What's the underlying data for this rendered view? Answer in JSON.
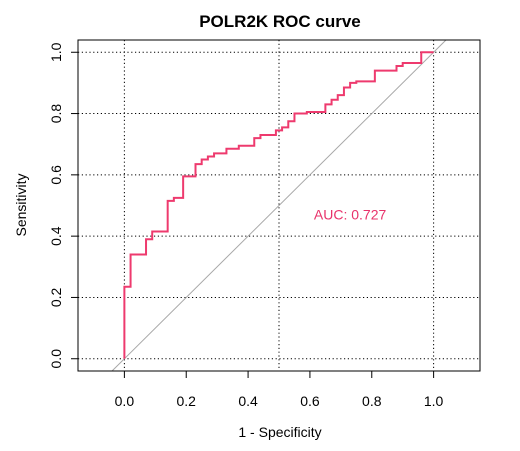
{
  "chart_data": {
    "type": "line",
    "title": "POLR2K ROC curve",
    "xlabel": "1 - Specificity",
    "ylabel": "Sensitivity",
    "xlim": [
      -0.15,
      1.15
    ],
    "ylim": [
      -0.04,
      1.04
    ],
    "xticks": [
      0.0,
      0.2,
      0.4,
      0.6,
      0.8,
      1.0
    ],
    "yticks": [
      0.0,
      0.2,
      0.4,
      0.6,
      0.8,
      1.0
    ],
    "xtick_labels": [
      "0.0",
      "0.2",
      "0.4",
      "0.6",
      "0.8",
      "1.0"
    ],
    "ytick_labels": [
      "0.0",
      "0.2",
      "0.4",
      "0.6",
      "0.8",
      "1.0"
    ],
    "grid": true,
    "grid_x": [
      0.0,
      0.5,
      1.0
    ],
    "grid_y": [
      0.0,
      0.2,
      0.4,
      0.6,
      0.8,
      1.0
    ],
    "diagonal": true,
    "annotation": {
      "text": "AUC: 0.727",
      "x": 0.73,
      "y": 0.47
    },
    "colors": {
      "curve": "#ee3a6e",
      "diagonal": "#a8a8a8",
      "annotation": "#e8336b"
    },
    "series": [
      {
        "x": [
          0.0,
          0.0,
          0.02,
          0.02,
          0.07,
          0.07,
          0.09,
          0.09,
          0.14,
          0.14,
          0.16,
          0.16,
          0.19,
          0.19,
          0.23,
          0.23,
          0.25,
          0.25,
          0.27,
          0.27,
          0.29,
          0.29,
          0.33,
          0.33,
          0.37,
          0.37,
          0.42,
          0.42,
          0.44,
          0.44,
          0.49,
          0.49,
          0.51,
          0.51,
          0.53,
          0.53,
          0.55,
          0.55,
          0.59,
          0.59,
          0.65,
          0.65,
          0.67,
          0.67,
          0.69,
          0.69,
          0.71,
          0.71,
          0.73,
          0.73,
          0.75,
          0.75,
          0.81,
          0.81,
          0.88,
          0.88,
          0.9,
          0.9,
          0.96,
          0.96,
          1.0
        ],
        "y": [
          0.0,
          0.235,
          0.235,
          0.34,
          0.34,
          0.39,
          0.39,
          0.415,
          0.415,
          0.515,
          0.515,
          0.525,
          0.525,
          0.595,
          0.595,
          0.635,
          0.635,
          0.65,
          0.65,
          0.66,
          0.66,
          0.67,
          0.67,
          0.685,
          0.685,
          0.695,
          0.695,
          0.72,
          0.72,
          0.73,
          0.73,
          0.745,
          0.745,
          0.755,
          0.755,
          0.775,
          0.775,
          0.8,
          0.8,
          0.805,
          0.805,
          0.83,
          0.83,
          0.845,
          0.845,
          0.86,
          0.86,
          0.885,
          0.885,
          0.9,
          0.9,
          0.905,
          0.905,
          0.94,
          0.94,
          0.955,
          0.955,
          0.965,
          0.965,
          1.0,
          1.0
        ]
      }
    ]
  }
}
